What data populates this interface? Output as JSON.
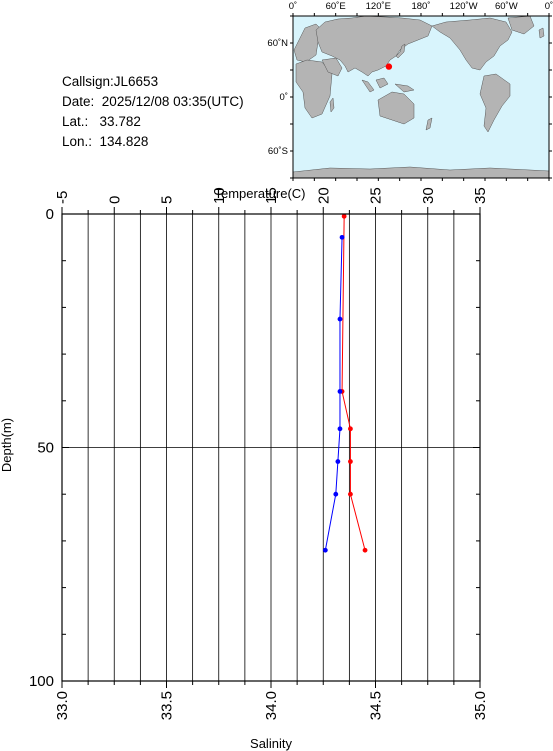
{
  "station": {
    "callsign_label": "Callsign:",
    "callsign": "JL6653",
    "date_label": "Date:",
    "date": "2025/12/08 03:35(UTC)",
    "lat_label": "Lat.:",
    "lat": "33.782",
    "lon_label": "Lon.:",
    "lon": "134.828"
  },
  "map": {
    "lon_ticks": [
      "0˚",
      "60˚E",
      "120˚E",
      "180˚",
      "120˚W",
      "60˚W",
      "0˚"
    ],
    "lat_ticks": [
      "60˚N",
      "0˚",
      "60˚S"
    ],
    "ocean_color": "#d8f4fc",
    "land_color": "#b4b4b4",
    "marker_color": "#ff0000",
    "marker_lat": 33.782,
    "marker_lon": 134.828
  },
  "chart_data": {
    "type": "line",
    "title": "",
    "ylabel": "Depth(m)",
    "ylim": [
      0,
      100
    ],
    "y_inverted": true,
    "y_ticks": [
      "0",
      "50",
      "100"
    ],
    "grid": true,
    "temperature_axis": {
      "label": "Temperature(C)",
      "position": "top",
      "xlim": [
        -5,
        35
      ],
      "ticks": [
        "-5",
        "0",
        "5",
        "10",
        "15",
        "20",
        "25",
        "30",
        "35"
      ]
    },
    "salinity_axis": {
      "label": "Salinity",
      "position": "bottom",
      "xlim": [
        33.0,
        35.0
      ],
      "ticks": [
        "33.0",
        "33.5",
        "34.0",
        "34.5",
        "35.0"
      ]
    },
    "series": [
      {
        "axis": "temperature",
        "color": "#ff0000",
        "points": [
          [
            22.0,
            0.5
          ],
          [
            21.8,
            38.0
          ],
          [
            22.6,
            46.0
          ],
          [
            22.6,
            53.0
          ],
          [
            22.6,
            60.0
          ],
          [
            24.0,
            72.0
          ]
        ]
      },
      {
        "axis": "salinity",
        "color": "#0000ff",
        "points": [
          [
            34.34,
            5.0
          ],
          [
            34.33,
            22.5
          ],
          [
            34.33,
            38.0
          ],
          [
            34.33,
            46.0
          ],
          [
            34.32,
            53.0
          ],
          [
            34.31,
            60.0
          ],
          [
            34.26,
            72.0
          ]
        ]
      }
    ]
  }
}
